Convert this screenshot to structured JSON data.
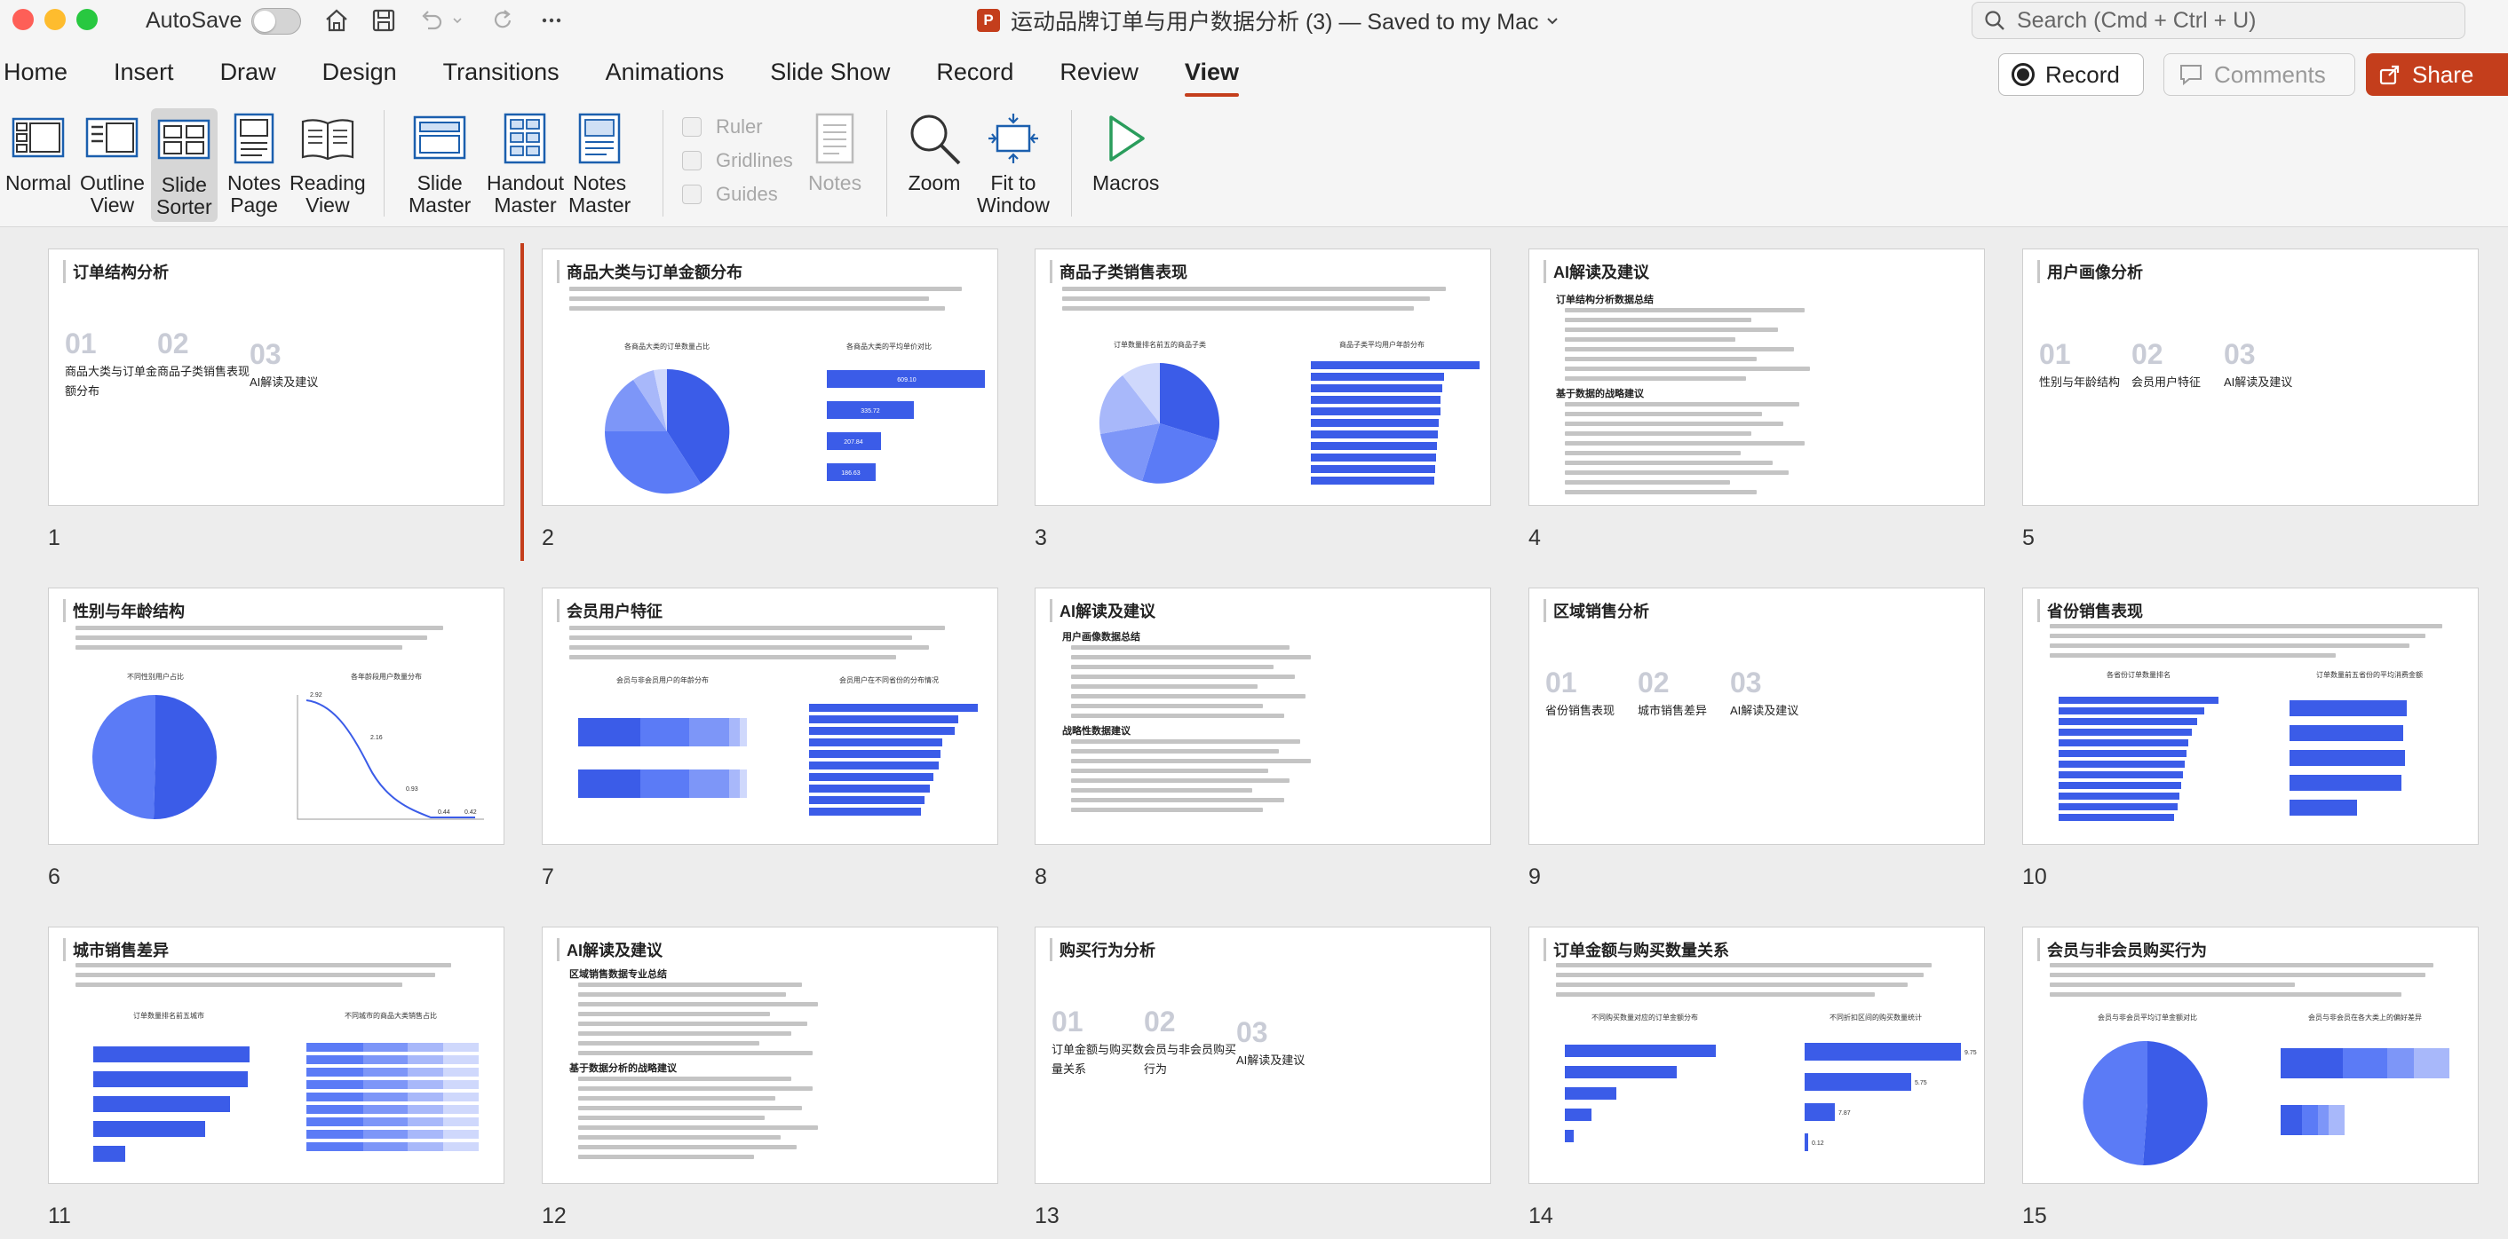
{
  "window": {
    "autosave_label": "AutoSave",
    "doc_title": "运动品牌订单与用户数据分析 (3) — Saved to my Mac",
    "search_placeholder": "Search (Cmd + Ctrl + U)"
  },
  "menu": {
    "tabs": [
      "Home",
      "Insert",
      "Draw",
      "Design",
      "Transitions",
      "Animations",
      "Slide Show",
      "Record",
      "Review",
      "View"
    ],
    "active_tab": "View",
    "record_label": "Record",
    "comments_label": "Comments",
    "share_label": "Share"
  },
  "ribbon": {
    "normal": "Normal",
    "outline_view": [
      "Outline",
      "View"
    ],
    "slide_sorter": [
      "Slide",
      "Sorter"
    ],
    "notes_page": [
      "Notes",
      "Page"
    ],
    "reading_view": [
      "Reading",
      "View"
    ],
    "slide_master": [
      "Slide",
      "Master"
    ],
    "handout_master": [
      "Handout",
      "Master"
    ],
    "notes_master": [
      "Notes",
      "Master"
    ],
    "ruler": "Ruler",
    "gridlines": "Gridlines",
    "guides": "Guides",
    "notes": "Notes",
    "zoom": "Zoom",
    "fit_to_window": [
      "Fit to",
      "Window"
    ],
    "macros": "Macros"
  },
  "slides": [
    {
      "num": "1",
      "title": "订单结构分析",
      "agenda": [
        {
          "num": "01",
          "label": "商品大类与订单金额分布"
        },
        {
          "num": "02",
          "label": "商品子类销售表现"
        },
        {
          "num": "03",
          "label": "AI解读及建议"
        }
      ]
    },
    {
      "num": "2",
      "title": "商品大类与订单金额分布",
      "chart1_title": "各商品大类的订单数量占比",
      "chart2_title": "各商品大类的平均单价对比",
      "bar_labels": [
        "609.10",
        "335.72",
        "207.84",
        "186.63"
      ]
    },
    {
      "num": "3",
      "title": "商品子类销售表现",
      "chart1_title": "订单数量排名前五的商品子类",
      "chart2_title": "商品子类平均用户年龄分布"
    },
    {
      "num": "4",
      "title": "AI解读及建议",
      "sub1": "订单结构分析数据总结",
      "sub2": "基于数据的战略建议"
    },
    {
      "num": "5",
      "title": "用户画像分析",
      "agenda": [
        {
          "num": "01",
          "label": "性别与年龄结构"
        },
        {
          "num": "02",
          "label": "会员用户特征"
        },
        {
          "num": "03",
          "label": "AI解读及建议"
        }
      ]
    },
    {
      "num": "6",
      "title": "性别与年龄结构",
      "chart1_title": "不同性别用户占比",
      "chart2_title": "各年龄段用户数量分布",
      "line_labels": [
        "2.92",
        "2.16",
        "0.93",
        "0.44",
        "0.42"
      ]
    },
    {
      "num": "7",
      "title": "会员用户特征",
      "chart1_title": "会员与非会员用户的年龄分布",
      "chart2_title": "会员用户在不同省份的分布情况"
    },
    {
      "num": "8",
      "title": "AI解读及建议",
      "sub1": "用户画像数据总结",
      "sub2": "战略性数据建议"
    },
    {
      "num": "9",
      "title": "区域销售分析",
      "agenda": [
        {
          "num": "01",
          "label": "省份销售表现"
        },
        {
          "num": "02",
          "label": "城市销售差异"
        },
        {
          "num": "03",
          "label": "AI解读及建议"
        }
      ]
    },
    {
      "num": "10",
      "title": "省份销售表现",
      "chart1_title": "各省份订单数量排名",
      "chart2_title": "订单数量前五省份的平均消费金额"
    },
    {
      "num": "11",
      "title": "城市销售差异",
      "chart1_title": "订单数量排名前五城市",
      "chart2_title": "不同城市的商品大类销售占比"
    },
    {
      "num": "12",
      "title": "AI解读及建议",
      "sub1": "区域销售数据专业总结",
      "sub2": "基于数据分析的战略建议"
    },
    {
      "num": "13",
      "title": "购买行为分析",
      "agenda": [
        {
          "num": "01",
          "label": "订单金额与购买数量关系"
        },
        {
          "num": "02",
          "label": "会员与非会员购买行为"
        },
        {
          "num": "03",
          "label": "AI解读及建议"
        }
      ]
    },
    {
      "num": "14",
      "title": "订单金额与购买数量关系",
      "chart1_title": "不同购买数量对应的订单金额分布",
      "chart2_title": "不同折扣区间的购买数量统计",
      "bar_labels": [
        "9.75",
        "5.75",
        "7.87",
        "0.12"
      ]
    },
    {
      "num": "15",
      "title": "会员与非会员购买行为",
      "chart1_title": "会员与非会员平均订单金额对比",
      "chart2_title": "会员与非会员在各大类上的偏好差异"
    }
  ]
}
